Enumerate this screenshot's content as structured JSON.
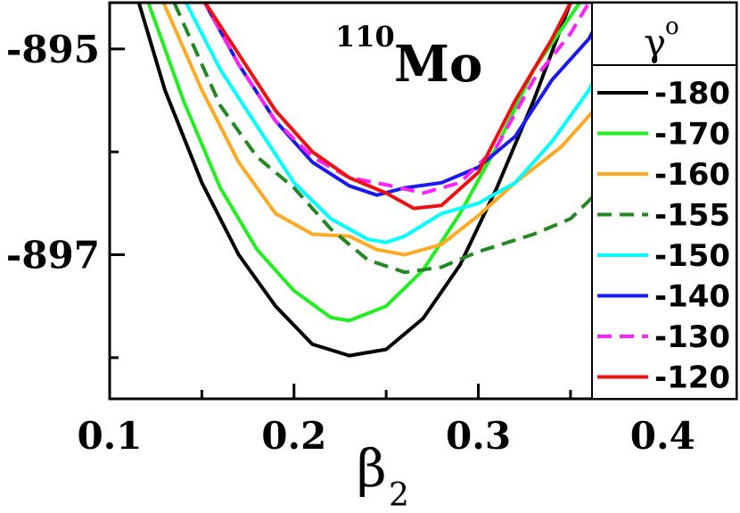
{
  "chart_data": {
    "type": "line",
    "title": {
      "superscript": "110",
      "main": "Mo"
    },
    "xlabel": {
      "main": "β",
      "subscript": "2"
    },
    "ylabel": "",
    "xlim": [
      0.1,
      0.44
    ],
    "ylim": [
      -898.4,
      -894.55
    ],
    "x_ticks": [
      0.1,
      0.2,
      0.3,
      0.4
    ],
    "x_tick_labels": [
      "0.1",
      "0.2",
      "0.3",
      "0.4"
    ],
    "x_minor_ticks": [
      0.15,
      0.25,
      0.35
    ],
    "y_ticks": [
      -895,
      -897
    ],
    "y_tick_labels": [
      "-895",
      "-897"
    ],
    "y_minor_ticks": [
      -896,
      -898
    ],
    "legend": {
      "title_main": "γ",
      "title_sup": "o",
      "placement": "right"
    },
    "series": [
      {
        "name": "-180",
        "color": "#000000",
        "dash": "solid",
        "points": [
          [
            0.115,
            -894.5
          ],
          [
            0.13,
            -895.4
          ],
          [
            0.15,
            -896.3
          ],
          [
            0.17,
            -897.0
          ],
          [
            0.19,
            -897.5
          ],
          [
            0.21,
            -897.87
          ],
          [
            0.23,
            -897.98
          ],
          [
            0.25,
            -897.92
          ],
          [
            0.27,
            -897.62
          ],
          [
            0.29,
            -897.1
          ],
          [
            0.31,
            -896.35
          ],
          [
            0.33,
            -895.5
          ],
          [
            0.35,
            -894.55
          ]
        ]
      },
      {
        "name": "-170",
        "color": "#22ee22",
        "dash": "solid",
        "points": [
          [
            0.12,
            -894.5
          ],
          [
            0.14,
            -895.5
          ],
          [
            0.16,
            -896.35
          ],
          [
            0.18,
            -896.95
          ],
          [
            0.2,
            -897.35
          ],
          [
            0.22,
            -897.61
          ],
          [
            0.23,
            -897.64
          ],
          [
            0.25,
            -897.5
          ],
          [
            0.27,
            -897.15
          ],
          [
            0.29,
            -896.6
          ],
          [
            0.31,
            -895.95
          ],
          [
            0.33,
            -895.2
          ],
          [
            0.355,
            -894.55
          ]
        ]
      },
      {
        "name": "-160",
        "color": "#ffaa22",
        "dash": "solid",
        "points": [
          [
            0.128,
            -894.5
          ],
          [
            0.15,
            -895.4
          ],
          [
            0.17,
            -896.1
          ],
          [
            0.19,
            -896.6
          ],
          [
            0.21,
            -896.8
          ],
          [
            0.23,
            -896.82
          ],
          [
            0.245,
            -896.95
          ],
          [
            0.26,
            -897.0
          ],
          [
            0.28,
            -896.9
          ],
          [
            0.3,
            -896.62
          ],
          [
            0.32,
            -896.3
          ],
          [
            0.345,
            -895.95
          ],
          [
            0.37,
            -895.45
          ],
          [
            0.38,
            -894.9
          ],
          [
            0.39,
            -894.55
          ]
        ]
      },
      {
        "name": "-155",
        "color": "#228822",
        "dash": "dashed",
        "points": [
          [
            0.135,
            -894.55
          ],
          [
            0.16,
            -895.55
          ],
          [
            0.18,
            -896.05
          ],
          [
            0.2,
            -896.35
          ],
          [
            0.22,
            -896.75
          ],
          [
            0.24,
            -897.05
          ],
          [
            0.26,
            -897.17
          ],
          [
            0.28,
            -897.12
          ],
          [
            0.3,
            -896.97
          ],
          [
            0.33,
            -896.8
          ],
          [
            0.35,
            -896.65
          ],
          [
            0.37,
            -896.3
          ],
          [
            0.39,
            -895.9
          ],
          [
            0.41,
            -895.1
          ],
          [
            0.425,
            -894.55
          ]
        ]
      },
      {
        "name": "-150",
        "color": "#00ffff",
        "dash": "solid",
        "points": [
          [
            0.14,
            -894.5
          ],
          [
            0.16,
            -895.2
          ],
          [
            0.18,
            -895.75
          ],
          [
            0.2,
            -896.3
          ],
          [
            0.22,
            -896.65
          ],
          [
            0.24,
            -896.85
          ],
          [
            0.25,
            -896.88
          ],
          [
            0.26,
            -896.82
          ],
          [
            0.28,
            -896.6
          ],
          [
            0.3,
            -896.5
          ],
          [
            0.32,
            -896.3
          ],
          [
            0.34,
            -895.9
          ],
          [
            0.36,
            -895.4
          ],
          [
            0.37,
            -895.05
          ],
          [
            0.38,
            -894.55
          ]
        ]
      },
      {
        "name": "-140",
        "color": "#1a1aee",
        "dash": "solid",
        "points": [
          [
            0.15,
            -894.5
          ],
          [
            0.17,
            -895.15
          ],
          [
            0.19,
            -895.7
          ],
          [
            0.21,
            -896.1
          ],
          [
            0.23,
            -896.33
          ],
          [
            0.245,
            -896.42
          ],
          [
            0.26,
            -896.35
          ],
          [
            0.28,
            -896.3
          ],
          [
            0.3,
            -896.15
          ],
          [
            0.32,
            -895.85
          ],
          [
            0.34,
            -895.3
          ],
          [
            0.36,
            -894.9
          ],
          [
            0.37,
            -894.55
          ]
        ]
      },
      {
        "name": "-130",
        "color": "#ff22ff",
        "dash": "dashed",
        "points": [
          [
            0.15,
            -894.5
          ],
          [
            0.17,
            -895.15
          ],
          [
            0.19,
            -895.7
          ],
          [
            0.21,
            -896.05
          ],
          [
            0.23,
            -896.25
          ],
          [
            0.25,
            -896.32
          ],
          [
            0.27,
            -896.4
          ],
          [
            0.29,
            -896.3
          ],
          [
            0.31,
            -895.95
          ],
          [
            0.33,
            -895.3
          ],
          [
            0.35,
            -894.85
          ],
          [
            0.36,
            -894.55
          ]
        ]
      },
      {
        "name": "-120",
        "color": "#ee1111",
        "dash": "solid",
        "points": [
          [
            0.15,
            -894.5
          ],
          [
            0.17,
            -895.05
          ],
          [
            0.19,
            -895.6
          ],
          [
            0.21,
            -896.0
          ],
          [
            0.23,
            -896.25
          ],
          [
            0.25,
            -896.4
          ],
          [
            0.265,
            -896.55
          ],
          [
            0.28,
            -896.52
          ],
          [
            0.3,
            -896.2
          ],
          [
            0.32,
            -895.5
          ],
          [
            0.34,
            -894.9
          ],
          [
            0.35,
            -894.55
          ]
        ]
      }
    ]
  }
}
